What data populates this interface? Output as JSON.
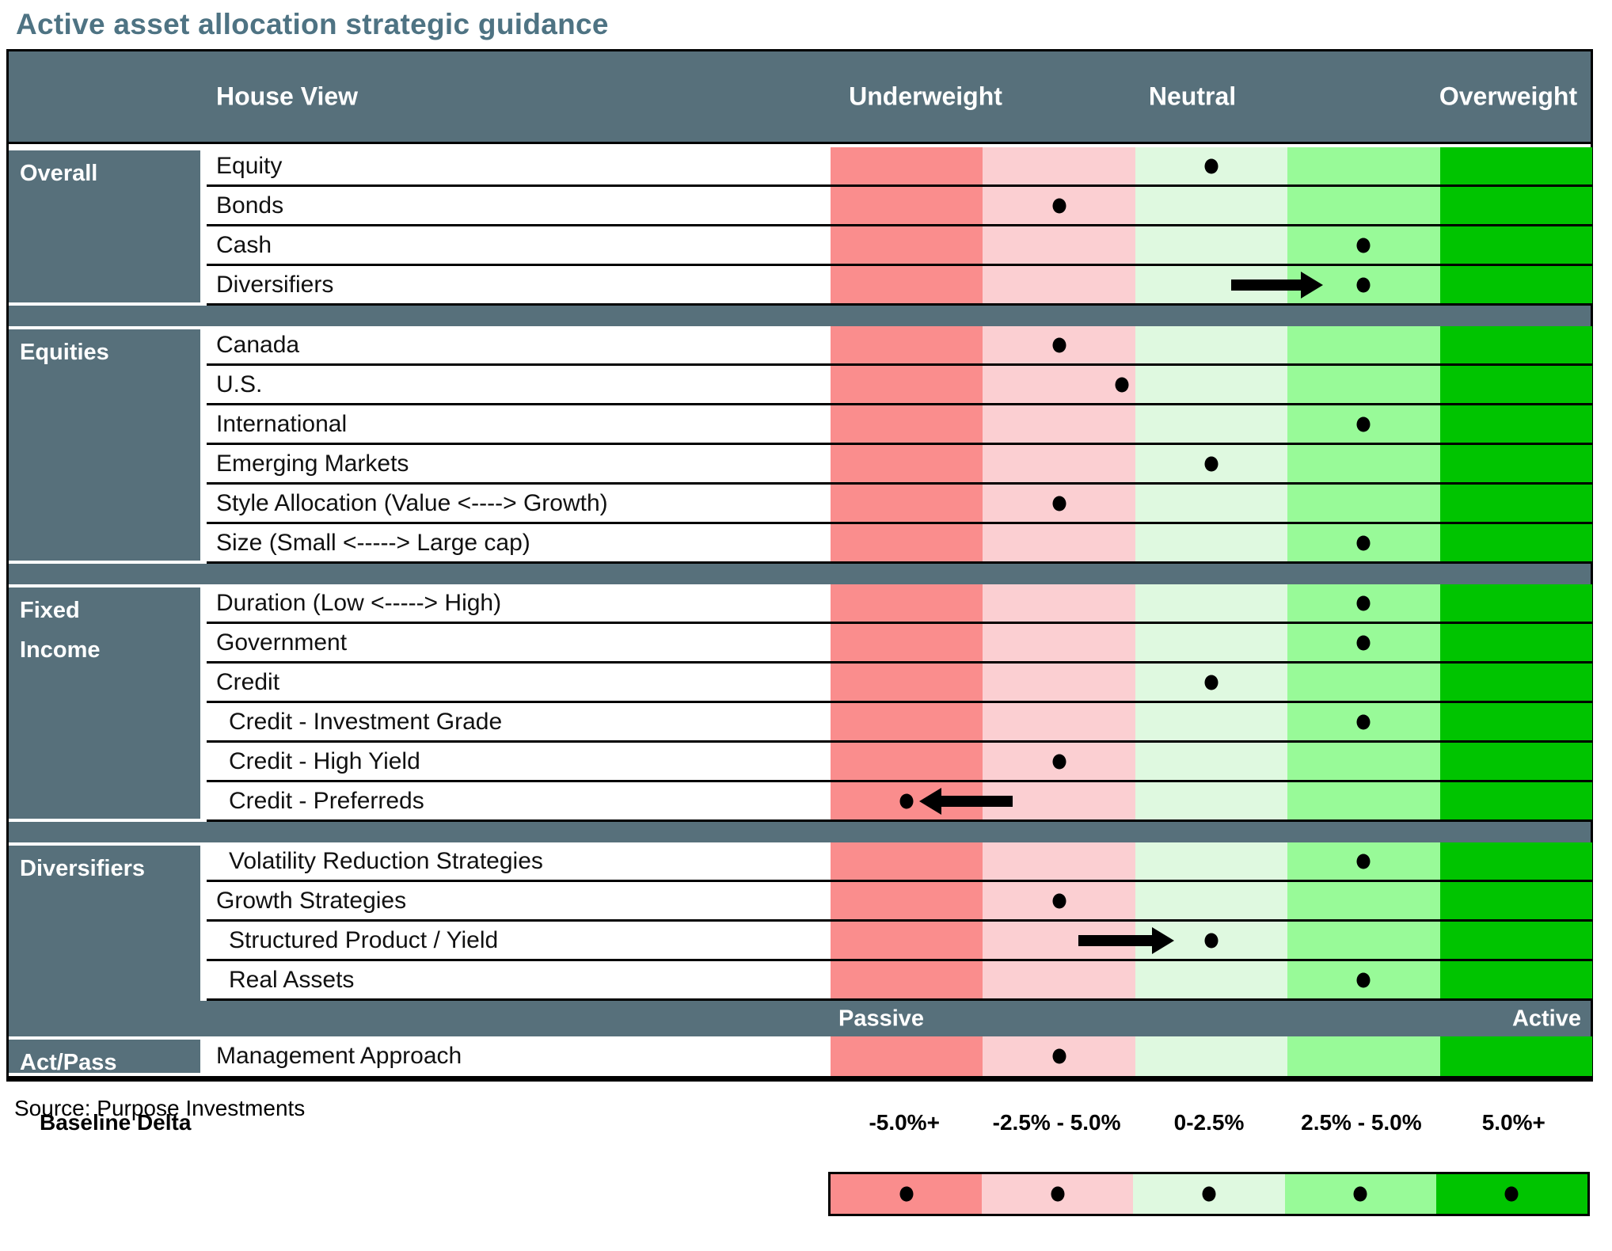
{
  "title": "Active asset allocation strategic guidance",
  "header": {
    "house_view": "House View",
    "underweight": "Underweight",
    "neutral": "Neutral",
    "overweight": "Overweight"
  },
  "colors": {
    "slate": "#57707B",
    "title": "#4E7383",
    "band1": "#FA8D8D",
    "band2": "#FBCFD2",
    "band3": "#DFF9E0",
    "band4": "#98FA98",
    "band5": "#00C400",
    "dot": "#000000"
  },
  "groups": [
    {
      "name": "Overall",
      "rows": [
        {
          "label": "Equity",
          "dot": 0.5
        },
        {
          "label": "Bonds",
          "dot": 0.3
        },
        {
          "label": "Cash",
          "dot": 0.7
        },
        {
          "label": "Diversifiers",
          "dot": 0.7,
          "arrow": {
            "dir": "right",
            "from": 0.526,
            "to": 0.647
          }
        }
      ]
    },
    {
      "name": "Equities",
      "rows": [
        {
          "label": "Canada",
          "dot": 0.3
        },
        {
          "label": "U.S.",
          "dot": 0.383
        },
        {
          "label": "International",
          "dot": 0.7
        },
        {
          "label": "Emerging Markets",
          "dot": 0.5
        },
        {
          "label": "Style Allocation (Value <----> Growth)",
          "dot": 0.3
        },
        {
          "label": "Size (Small <----->  Large cap)",
          "dot": 0.7
        }
      ]
    },
    {
      "name": "Fixed\nIncome",
      "rows": [
        {
          "label": "Duration (Low <-----> High)",
          "dot": 0.7
        },
        {
          "label": "Government",
          "dot": 0.7
        },
        {
          "label": "Credit",
          "dot": 0.5
        },
        {
          "label": "Credit - Investment Grade",
          "dot": 0.7,
          "indent": true
        },
        {
          "label": "Credit - High Yield",
          "dot": 0.3,
          "indent": true
        },
        {
          "label": "Credit - Preferreds",
          "dot": 0.1,
          "indent": true,
          "arrow": {
            "dir": "left",
            "from": 0.116,
            "to": 0.239
          }
        }
      ]
    },
    {
      "name": "Diversifiers",
      "nobot": true,
      "rows": [
        {
          "label": "Volatility Reduction Strategies",
          "dot": 0.7,
          "indent": true
        },
        {
          "label": "Growth Strategies",
          "dot": 0.3
        },
        {
          "label": "Structured Product / Yield",
          "dot": 0.5,
          "indent": true,
          "arrow": {
            "dir": "right",
            "from": 0.325,
            "to": 0.451
          }
        },
        {
          "label": "Real Assets",
          "dot": 0.7,
          "indent": true
        }
      ]
    },
    {
      "name": "Act/Pass",
      "rows": [
        {
          "label": "Management Approach",
          "dot": 0.3
        }
      ]
    }
  ],
  "passive_band": {
    "left": "Passive",
    "right": "Active"
  },
  "source": "Source: Purpose Investments",
  "legend": {
    "title": "Baseline Delta",
    "labels": [
      "-5.0%+",
      "-2.5% - 5.0%",
      "0-2.5%",
      "2.5% - 5.0%",
      "5.0%+"
    ],
    "dot_positions": [
      0.1,
      0.3,
      0.5,
      0.7,
      0.9
    ]
  },
  "chart_data": {
    "type": "table",
    "title": "Active asset allocation strategic guidance",
    "scale_bands": [
      "-5.0%+",
      "-2.5% - 5.0%",
      "0-2.5%",
      "2.5% - 5.0%",
      "5.0%+"
    ],
    "scale_headers": [
      "Underweight",
      "Neutral",
      "Overweight"
    ],
    "rows": [
      {
        "group": "Overall",
        "label": "Equity",
        "band": 3,
        "band_label": "0-2.5%",
        "arrow": null
      },
      {
        "group": "Overall",
        "label": "Bonds",
        "band": 2,
        "band_label": "-2.5% - 5.0%",
        "arrow": null
      },
      {
        "group": "Overall",
        "label": "Cash",
        "band": 4,
        "band_label": "2.5% - 5.0%",
        "arrow": null
      },
      {
        "group": "Overall",
        "label": "Diversifiers",
        "band": 4,
        "band_label": "2.5% - 5.0%",
        "arrow": "right"
      },
      {
        "group": "Equities",
        "label": "Canada",
        "band": 2,
        "band_label": "-2.5% - 5.0%",
        "arrow": null
      },
      {
        "group": "Equities",
        "label": "U.S.",
        "band": 2,
        "band_label": "-2.5% - 5.0% (upper edge)",
        "arrow": null
      },
      {
        "group": "Equities",
        "label": "International",
        "band": 4,
        "band_label": "2.5% - 5.0%",
        "arrow": null
      },
      {
        "group": "Equities",
        "label": "Emerging Markets",
        "band": 3,
        "band_label": "0-2.5%",
        "arrow": null
      },
      {
        "group": "Equities",
        "label": "Style Allocation (Value <----> Growth)",
        "band": 2,
        "band_label": "-2.5% - 5.0%",
        "arrow": null
      },
      {
        "group": "Equities",
        "label": "Size (Small <----->  Large cap)",
        "band": 4,
        "band_label": "2.5% - 5.0%",
        "arrow": null
      },
      {
        "group": "Fixed Income",
        "label": "Duration (Low <-----> High)",
        "band": 4,
        "band_label": "2.5% - 5.0%",
        "arrow": null
      },
      {
        "group": "Fixed Income",
        "label": "Government",
        "band": 4,
        "band_label": "2.5% - 5.0%",
        "arrow": null
      },
      {
        "group": "Fixed Income",
        "label": "Credit",
        "band": 3,
        "band_label": "0-2.5%",
        "arrow": null
      },
      {
        "group": "Fixed Income",
        "label": "Credit - Investment Grade",
        "band": 4,
        "band_label": "2.5% - 5.0%",
        "arrow": null
      },
      {
        "group": "Fixed Income",
        "label": "Credit - High Yield",
        "band": 2,
        "band_label": "-2.5% - 5.0%",
        "arrow": null
      },
      {
        "group": "Fixed Income",
        "label": "Credit - Preferreds",
        "band": 1,
        "band_label": "-5.0%+",
        "arrow": "left"
      },
      {
        "group": "Diversifiers",
        "label": "Volatility Reduction Strategies",
        "band": 4,
        "band_label": "2.5% - 5.0%",
        "arrow": null
      },
      {
        "group": "Diversifiers",
        "label": "Growth Strategies",
        "band": 2,
        "band_label": "-2.5% - 5.0%",
        "arrow": null
      },
      {
        "group": "Diversifiers",
        "label": "Structured Product / Yield",
        "band": 3,
        "band_label": "0-2.5%",
        "arrow": "right"
      },
      {
        "group": "Diversifiers",
        "label": "Real Assets",
        "band": 4,
        "band_label": "2.5% - 5.0%",
        "arrow": null
      },
      {
        "group": "Act/Pass",
        "label": "Management Approach",
        "band": 2,
        "band_label": "Passive side",
        "arrow": null
      }
    ]
  }
}
